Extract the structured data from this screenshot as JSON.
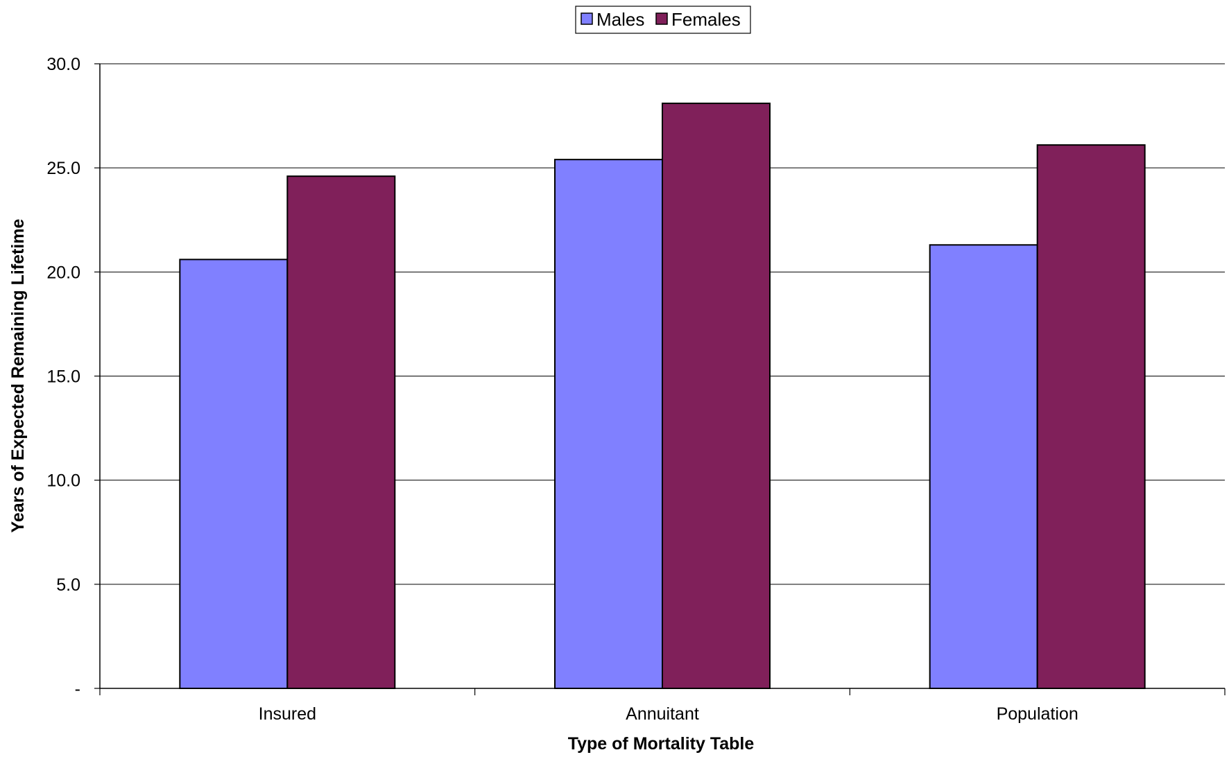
{
  "chart_data": {
    "type": "bar",
    "categories": [
      "Insured",
      "Annuitant",
      "Population"
    ],
    "series": [
      {
        "name": "Males",
        "values": [
          20.6,
          25.4,
          21.3
        ],
        "color": "#8080FF"
      },
      {
        "name": "Females",
        "values": [
          24.6,
          28.1,
          26.1
        ],
        "color": "#80205A"
      }
    ],
    "xlabel": "Type of Mortality Table",
    "ylabel": "Years of Expected Remaining Lifetime",
    "ylim": [
      0,
      30
    ],
    "yticks": [
      0,
      5,
      10,
      15,
      20,
      25,
      30
    ],
    "ytick_labels": [
      "-",
      "5.0",
      "10.0",
      "15.0",
      "20.0",
      "25.0",
      "30.0"
    ],
    "grid": true,
    "legend_position": "top-center"
  }
}
